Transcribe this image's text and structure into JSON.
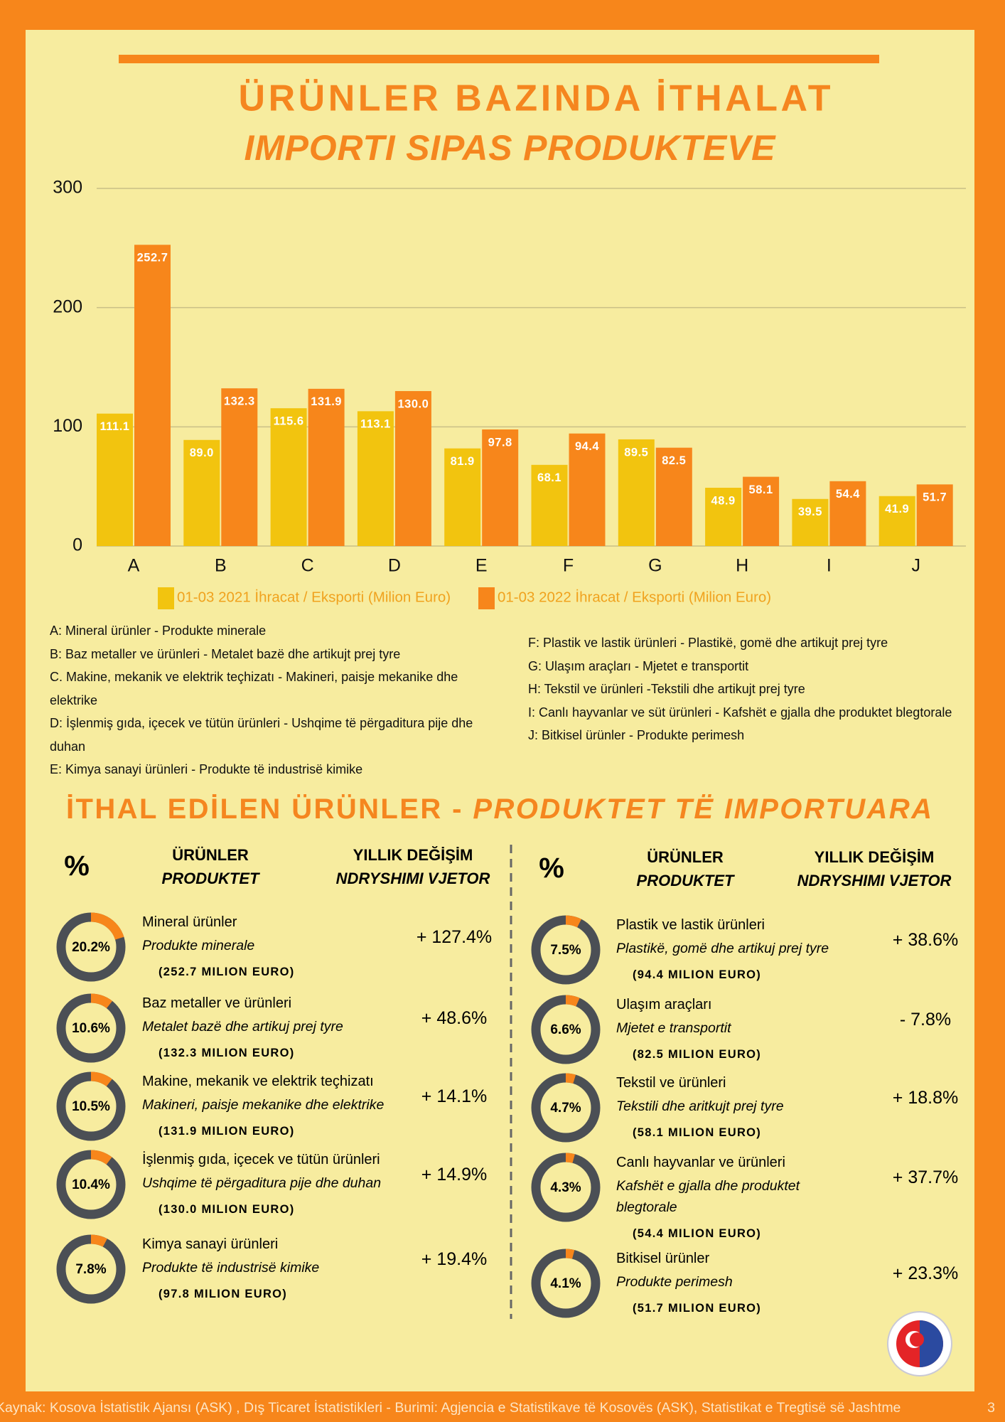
{
  "chart_data": {
    "type": "bar",
    "title": "ÜRÜNLER BAZINDA İTHALAT",
    "subtitle": "IMPORTI SIPAS PRODUKTEVE",
    "categories": [
      "A",
      "B",
      "C",
      "D",
      "E",
      "F",
      "G",
      "H",
      "I",
      "J"
    ],
    "series": [
      {
        "name": "01-03 2021 İhracat / Eksporti (Milion Euro)",
        "color": "#f2c40f",
        "values": [
          111.1,
          89.0,
          115.6,
          113.1,
          81.9,
          68.1,
          89.5,
          48.9,
          39.5,
          41.9
        ],
        "value_labels": [
          "111.1",
          "89.0",
          "115.6",
          "113.1",
          "81.9",
          "68.1",
          "89.5",
          "48.9",
          "39.5",
          "41.9"
        ]
      },
      {
        "name": "01-03 2022 İhracat / Eksporti (Milion Euro)",
        "color": "#f7861b",
        "values": [
          252.7,
          132.3,
          131.9,
          130.0,
          97.8,
          94.4,
          82.5,
          58.1,
          54.4,
          51.7
        ],
        "value_labels": [
          "252.7",
          "132.3",
          "131.9",
          "130.0",
          "97.8",
          "94.4",
          "82.5",
          "58.1",
          "54.4",
          "51.7"
        ]
      }
    ],
    "ylim": [
      0,
      300
    ],
    "yticks": [
      0,
      100,
      200,
      300
    ],
    "grid": true
  },
  "notes": {
    "left": [
      "A: Mineral ürünler - Produkte minerale",
      "B: Baz metaller ve ürünleri - Metalet bazë dhe artikujt prej tyre",
      "C. Makine, mekanik ve elektrik teçhizatı - Makineri, paisje mekanike dhe elektrike",
      "D:  İşlenmiş gıda, içecek ve tütün ürünleri - Ushqime të përgaditura pije dhe duhan",
      "E:  Kimya sanayi ürünleri - Produkte të industrisë kimike"
    ],
    "right": [
      "F: Plastik ve lastik ürünleri - Plastikë, gomë dhe artikujt prej tyre",
      "G: Ulaşım araçları - Mjetet e transportit",
      "H: Tekstil ve ürünleri -Tekstili dhe artikujt prej tyre",
      "I:  Canlı hayvanlar ve süt ürünleri - Kafshët e gjalla dhe produktet blegtorale",
      "J: Bitkisel ürünler - Produkte perimesh"
    ]
  },
  "section": {
    "title": "İTHAL EDİLEN ÜRÜNLER - ",
    "title_alt": "PRODUKTET TË IMPORTUARA"
  },
  "tables": [
    {
      "header": {
        "share": "%",
        "product": "ÜRÜNLER",
        "product_alt": "PRODUKTET",
        "change": "YILLIK DEĞİŞİM",
        "change_alt": "NDRYSHIMI VJETOR"
      },
      "rows": [
        {
          "share": 20.2,
          "share_label": "20.2%",
          "name": "Mineral ürünler",
          "name_alt": "Produkte minerale",
          "amount": "(252.7 MILION EURO)",
          "change": "+ 127.4%"
        },
        {
          "share": 10.6,
          "share_label": "10.6%",
          "name": "Baz metaller ve ürünleri",
          "name_alt": "Metalet bazë dhe artikuj prej tyre",
          "amount": "(132.3 MILION EURO)",
          "change": "+ 48.6%"
        },
        {
          "share": 10.5,
          "share_label": "10.5%",
          "name": "Makine, mekanik ve elektrik teçhizatı",
          "name_alt": "Makineri, paisje mekanike dhe elektrike",
          "amount": "(131.9 MILION EURO)",
          "change": "+ 14.1%"
        },
        {
          "share": 10.4,
          "share_label": "10.4%",
          "name": "İşlenmiş gıda, içecek ve tütün ürünleri",
          "name_alt": "Ushqime të përgaditura pije dhe duhan",
          "amount": "(130.0 MILION EURO)",
          "change": "+ 14.9%"
        },
        {
          "share": 7.8,
          "share_label": "7.8%",
          "name": "Kimya sanayi ürünleri",
          "name_alt": "Produkte të industrisë kimike",
          "amount": "(97.8 MILION EURO)",
          "change": "+ 19.4%"
        }
      ]
    },
    {
      "header": {
        "share": "%",
        "product": "ÜRÜNLER",
        "product_alt": "PRODUKTET",
        "change": "YILLIK DEĞİŞİM",
        "change_alt": "NDRYSHIMI VJETOR"
      },
      "rows": [
        {
          "share": 7.5,
          "share_label": "7.5%",
          "name": "Plastik ve lastik ürünleri",
          "name_alt": "Plastikë, gomë dhe artikuj prej tyre",
          "amount": "(94.4 MILION EURO)",
          "change": "+ 38.6%"
        },
        {
          "share": 6.6,
          "share_label": "6.6%",
          "name": "Ulaşım araçları",
          "name_alt": "Mjetet e transportit",
          "amount": "(82.5 MILION EURO)",
          "change": "- 7.8%"
        },
        {
          "share": 4.7,
          "share_label": "4.7%",
          "name": "Tekstil ve ürünleri",
          "name_alt": "Tekstili dhe aritkujt prej tyre",
          "amount": "(58.1 MILION EURO)",
          "change": "+ 18.8%"
        },
        {
          "share": 4.3,
          "share_label": "4.3%",
          "name": "Canlı hayvanlar ve ürünleri",
          "name_alt": "Kafshët e gjalla dhe produktet blegtorale",
          "amount": "(54.4 MILION EURO)",
          "change": "+ 37.7%"
        },
        {
          "share": 4.1,
          "share_label": "4.1%",
          "name": "Bitkisel ürünler",
          "name_alt": "Produkte perimesh",
          "amount": "(51.7 MILION EURO)",
          "change": "+ 23.3%"
        }
      ]
    }
  ],
  "footer": {
    "source": "Kaynak: Kosova İstatistik Ajansı (ASK) ,  Dış Ticaret İstatistikleri -   Burimi: Agjencia e Statistikave të Kosovës (ASK), Statistikat e Tregtisë së Jashtme",
    "page": "3"
  }
}
